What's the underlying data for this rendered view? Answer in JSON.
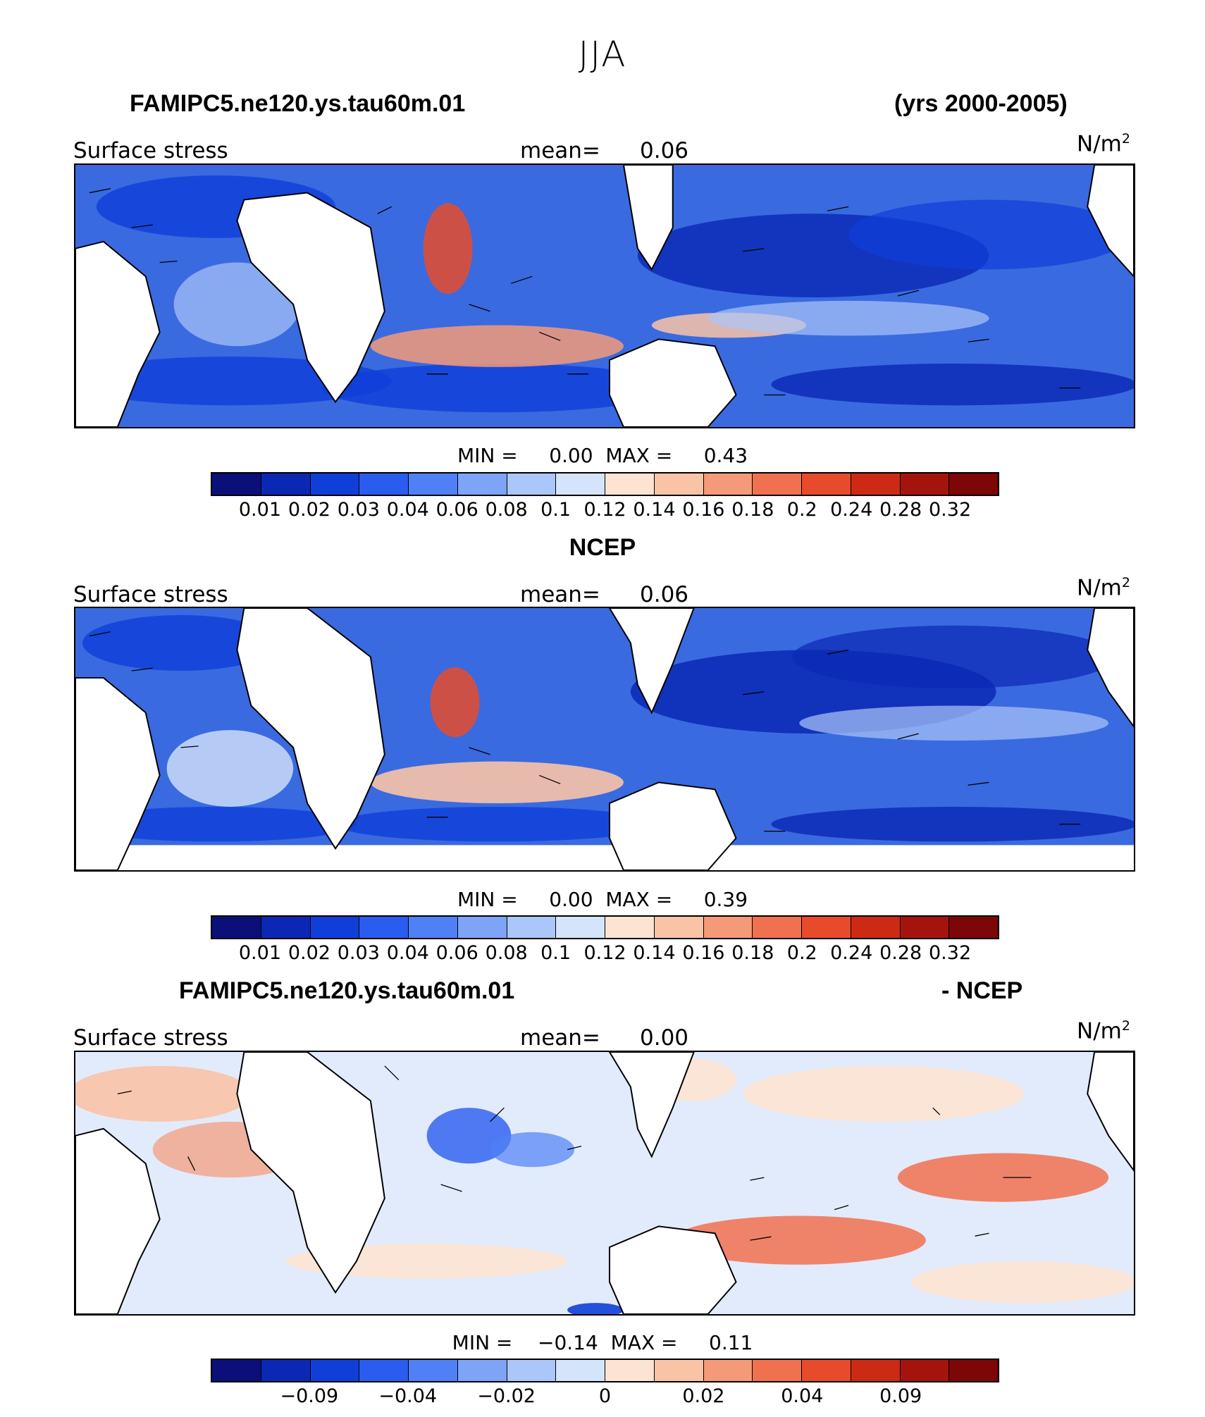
{
  "header": {
    "season": "JJA",
    "case_name": "FAMIPC5.ne120.ys.tau60m.01",
    "years": "(yrs 2000-2005)"
  },
  "panels": [
    {
      "title": "",
      "field_label": "Surface stress",
      "mean_label": "mean=",
      "mean_value": "0.06",
      "units": "N/m",
      "units_sup": "2",
      "min_label": "MIN =",
      "min_value": "0.00",
      "max_label": "MAX =",
      "max_value": "0.43",
      "colorbar_ticks": [
        "0.01",
        "0.02",
        "0.03",
        "0.04",
        "0.06",
        "0.08",
        "0.1",
        "0.12",
        "0.14",
        "0.16",
        "0.18",
        "0.2",
        "0.24",
        "0.28",
        "0.32"
      ]
    },
    {
      "title": "NCEP",
      "field_label": "Surface stress",
      "mean_label": "mean=",
      "mean_value": "0.06",
      "units": "N/m",
      "units_sup": "2",
      "min_label": "MIN =",
      "min_value": "0.00",
      "max_label": "MAX =",
      "max_value": "0.39",
      "colorbar_ticks": [
        "0.01",
        "0.02",
        "0.03",
        "0.04",
        "0.06",
        "0.08",
        "0.1",
        "0.12",
        "0.14",
        "0.16",
        "0.18",
        "0.2",
        "0.24",
        "0.28",
        "0.32"
      ]
    },
    {
      "title_left": "FAMIPC5.ne120.ys.tau60m.01",
      "title_right": "- NCEP",
      "field_label": "Surface stress",
      "mean_label": "mean=",
      "mean_value": "0.00",
      "units": "N/m",
      "units_sup": "2",
      "min_label": "MIN =",
      "min_value": "−0.14",
      "max_label": "MAX =",
      "max_value": "0.11",
      "colorbar_ticks": [
        "−0.09",
        "−0.04",
        "−0.02",
        "0",
        "0.02",
        "0.04",
        "0.09"
      ]
    }
  ],
  "colorbar_colors": [
    "#0a0f7a",
    "#0a28b4",
    "#0f3fd8",
    "#2a5cf0",
    "#4f80f5",
    "#7ea4f7",
    "#abc6f8",
    "#d4e4fb",
    "#fde4d2",
    "#f9c3a6",
    "#f59a78",
    "#f0714f",
    "#e84b2c",
    "#cc2a14",
    "#a5140c",
    "#7d0606"
  ]
}
